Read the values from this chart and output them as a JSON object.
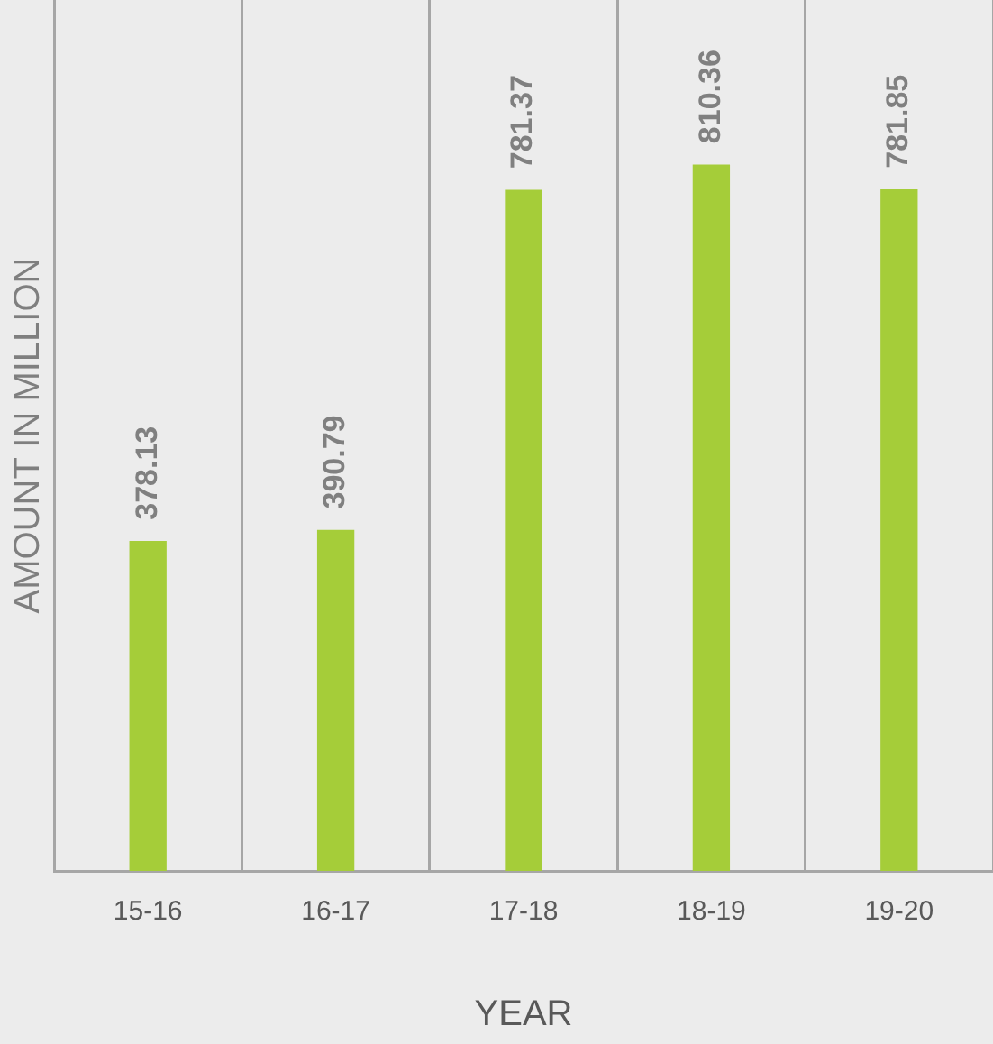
{
  "chart_data": {
    "type": "bar",
    "xlabel": "YEAR",
    "ylabel": "AMOUNT IN MILLION",
    "categories": [
      "15-16",
      "16-17",
      "17-18",
      "18-19",
      "19-20"
    ],
    "values": [
      378.13,
      390.79,
      781.37,
      810.36,
      781.85
    ],
    "color": "#a5cd39",
    "data_labels": true,
    "grid": "x",
    "tick_labels": "x",
    "legend": false
  }
}
